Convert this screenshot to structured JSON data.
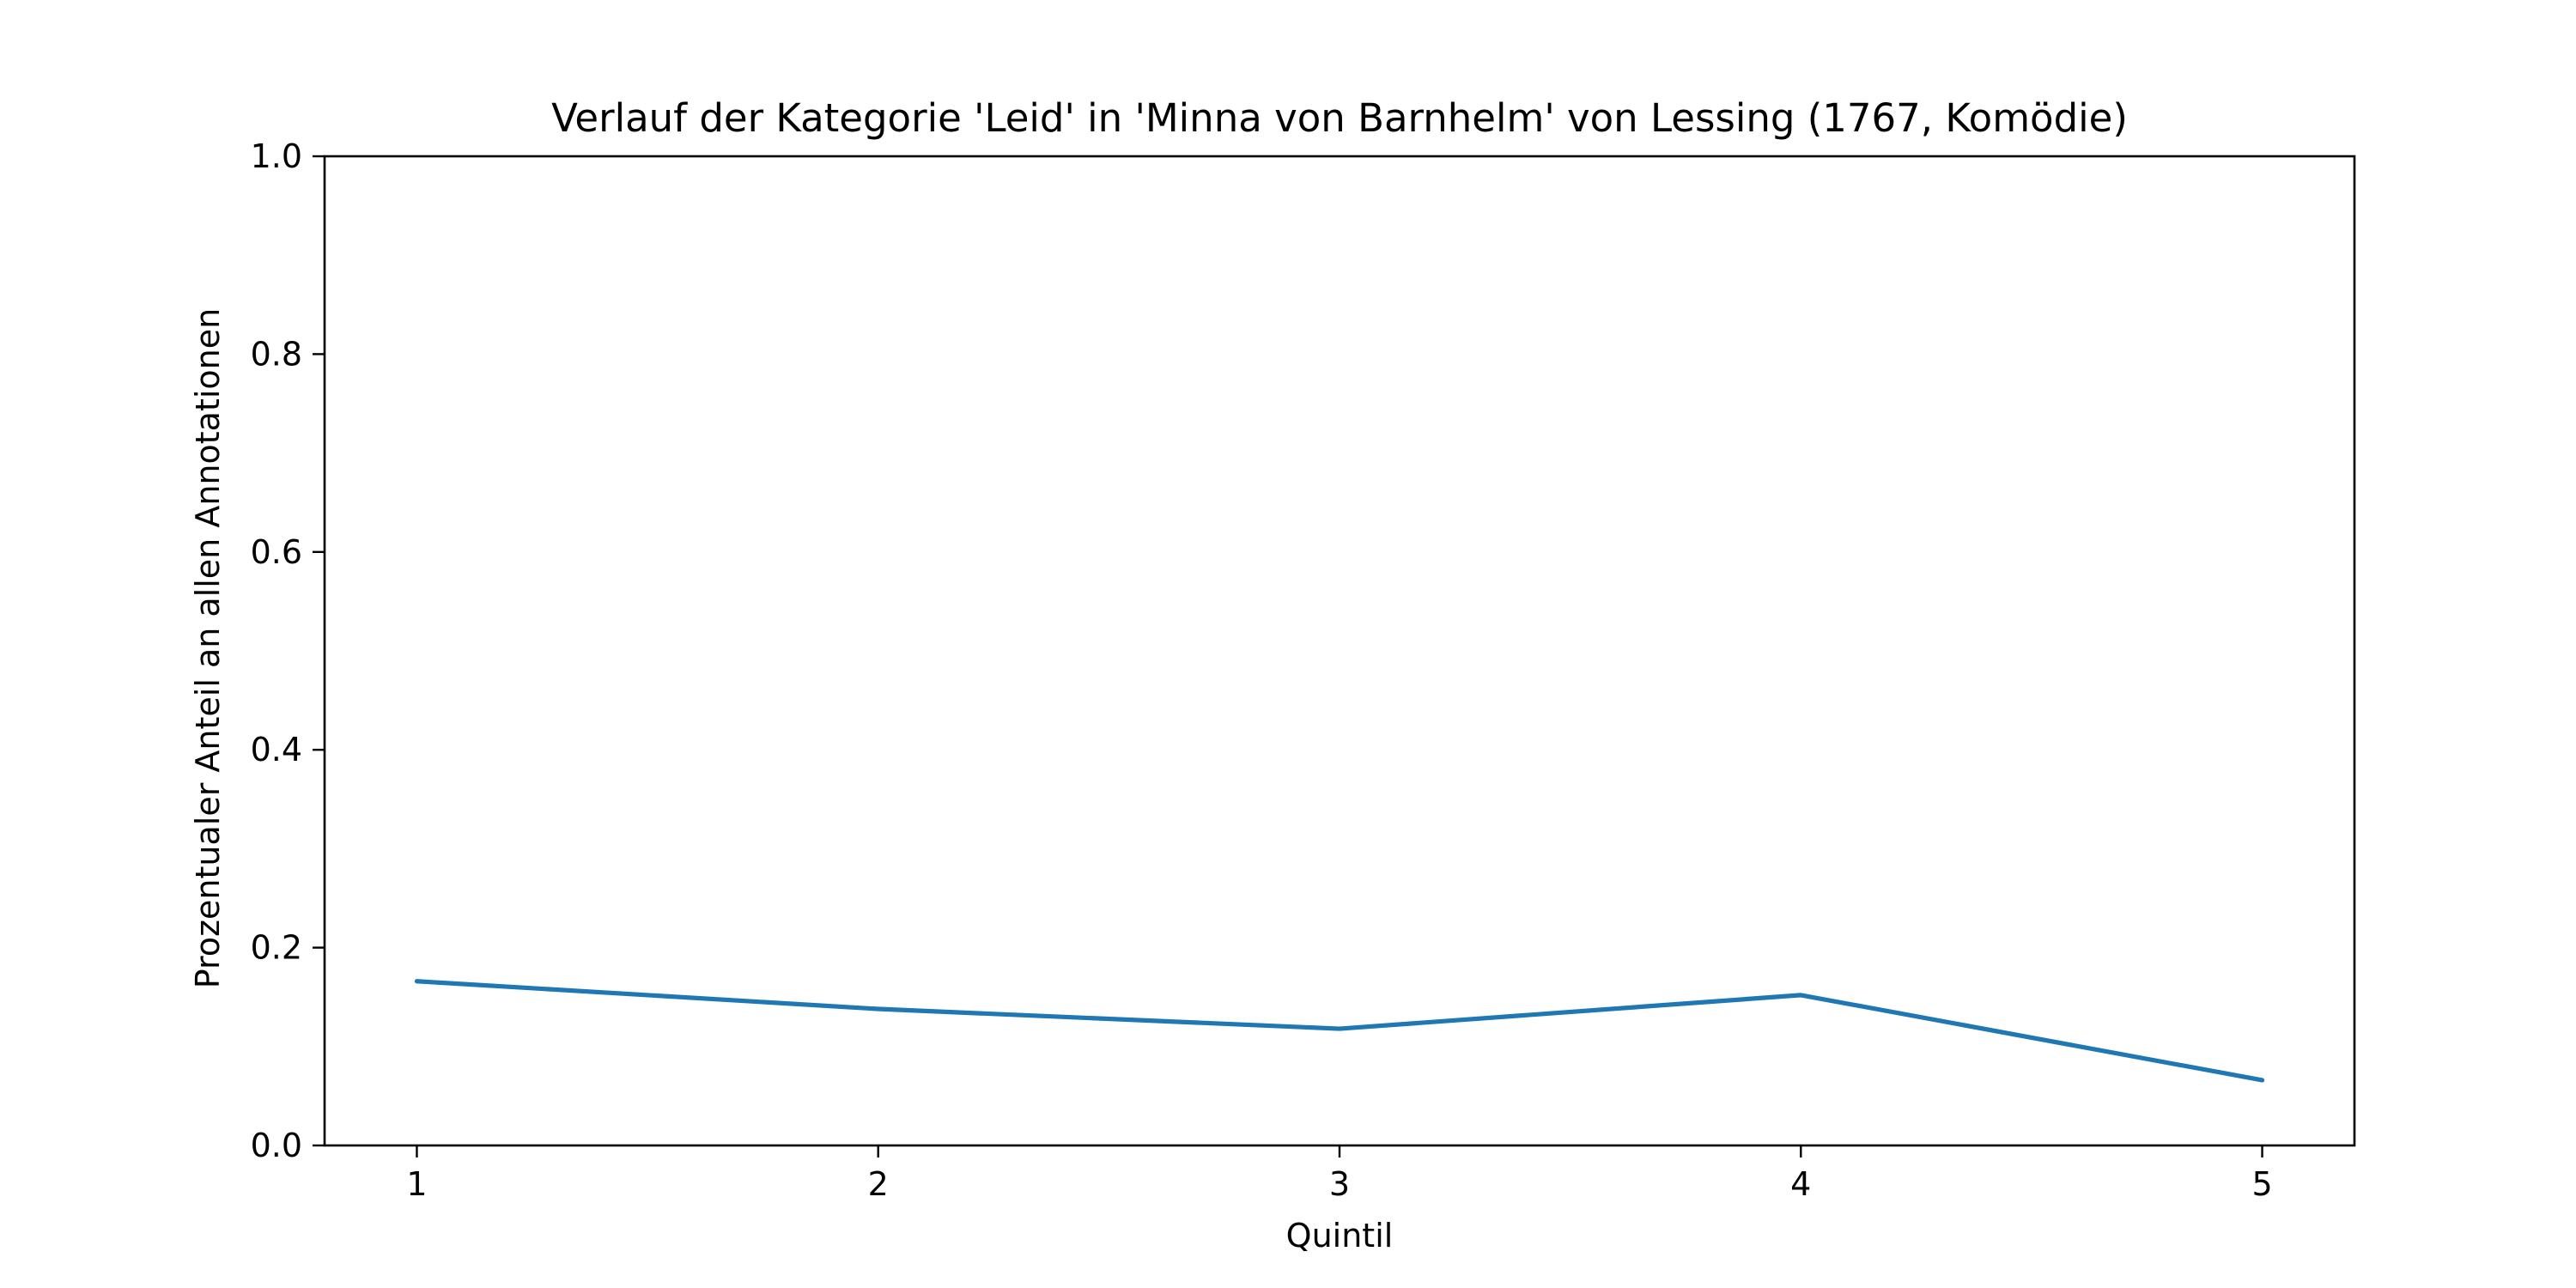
{
  "chart_data": {
    "type": "line",
    "title": "Verlauf der Kategorie 'Leid' in 'Minna von Barnhelm' von Lessing (1767, Komödie)",
    "xlabel": "Quintil",
    "ylabel": "Prozentualer Anteil an allen Annotationen",
    "x": [
      1,
      2,
      3,
      4,
      5
    ],
    "x_tick_labels": [
      "1",
      "2",
      "3",
      "4",
      "5"
    ],
    "y_ticks": [
      0.0,
      0.2,
      0.4,
      0.6,
      0.8,
      1.0
    ],
    "y_tick_labels": [
      "0.0",
      "0.2",
      "0.4",
      "0.6",
      "0.8",
      "1.0"
    ],
    "ylim": [
      0.0,
      1.0
    ],
    "xlim": [
      0.8,
      5.2
    ],
    "grid": false,
    "series": [
      {
        "values": [
          0.166,
          0.138,
          0.118,
          0.152,
          0.066
        ],
        "color": "#1f77b4"
      }
    ]
  }
}
